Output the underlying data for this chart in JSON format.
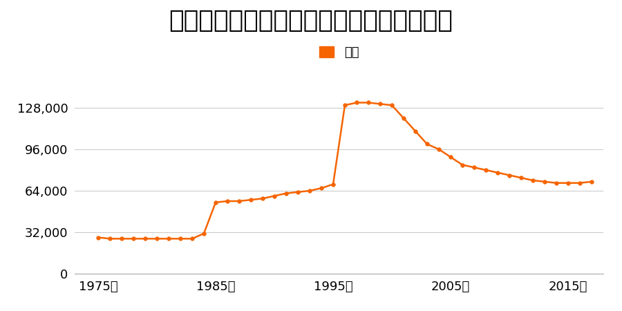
{
  "title": "長崎県長崎市東琴平町７４番５の地価推移",
  "legend_label": "価格",
  "line_color": "#f56400",
  "marker_color": "#f56400",
  "background_color": "#ffffff",
  "yticks": [
    0,
    32000,
    64000,
    96000,
    128000
  ],
  "xtick_labels": [
    "1975年",
    "1985年",
    "1995年",
    "2005年",
    "2015年"
  ],
  "xtick_values": [
    1975,
    1985,
    1995,
    2005,
    2015
  ],
  "ylim": [
    0,
    144000
  ],
  "xlim": [
    1973,
    2018
  ],
  "years": [
    1975,
    1976,
    1977,
    1978,
    1979,
    1980,
    1981,
    1982,
    1983,
    1984,
    1985,
    1986,
    1987,
    1988,
    1989,
    1990,
    1991,
    1992,
    1993,
    1994,
    1995,
    1996,
    1997,
    1998,
    1999,
    2000,
    2001,
    2002,
    2003,
    2004,
    2005,
    2006,
    2007,
    2008,
    2009,
    2010,
    2011,
    2012,
    2013,
    2014,
    2015,
    2016,
    2017
  ],
  "values": [
    28000,
    27000,
    27000,
    27000,
    27000,
    27000,
    27000,
    27000,
    27000,
    31000,
    55000,
    56000,
    56000,
    57000,
    58000,
    60000,
    62000,
    63000,
    64000,
    66000,
    69000,
    130000,
    132000,
    132000,
    131000,
    130000,
    120000,
    110000,
    100000,
    96000,
    90000,
    84000,
    82000,
    80000,
    78000,
    76000,
    74000,
    72000,
    71000,
    70000,
    70000,
    70000,
    71000
  ],
  "title_fontsize": 26,
  "legend_fontsize": 13,
  "tick_fontsize": 13,
  "grid_color": "#cccccc",
  "marker_size": 4,
  "line_width": 1.8
}
